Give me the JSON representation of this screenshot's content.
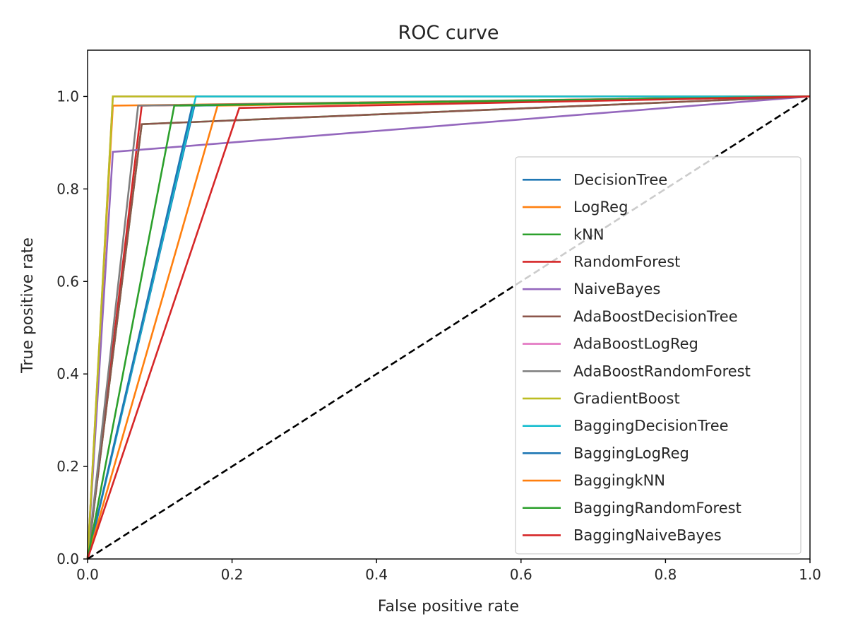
{
  "chart_data": {
    "type": "line",
    "title": "ROC curve",
    "xlabel": "False positive rate",
    "ylabel": "True positive rate",
    "xlim": [
      0,
      1
    ],
    "ylim": [
      0,
      1.1
    ],
    "xticks": [
      "0.0",
      "0.2",
      "0.4",
      "0.6",
      "0.8",
      "1.0"
    ],
    "yticks": [
      "0.0",
      "0.2",
      "0.4",
      "0.6",
      "0.8",
      "1.0"
    ],
    "grid": false,
    "legend_position": "center-right",
    "reference_line": {
      "x": [
        0,
        1
      ],
      "y": [
        0,
        1
      ],
      "color": "#000000",
      "style": "dashed"
    },
    "series": [
      {
        "name": "DecisionTree",
        "color": "#1f77b4",
        "x": [
          0,
          0.148,
          1
        ],
        "y": [
          0,
          0.98,
          1
        ]
      },
      {
        "name": "LogReg",
        "color": "#ff7f0e",
        "x": [
          0,
          0.035,
          1
        ],
        "y": [
          0,
          0.98,
          1
        ]
      },
      {
        "name": "kNN",
        "color": "#2ca02c",
        "x": [
          0,
          0.075,
          1
        ],
        "y": [
          0,
          0.94,
          1
        ]
      },
      {
        "name": "RandomForest",
        "color": "#d62728",
        "x": [
          0,
          0.075,
          1
        ],
        "y": [
          0,
          0.98,
          1
        ]
      },
      {
        "name": "NaiveBayes",
        "color": "#9467bd",
        "x": [
          0,
          0.035,
          1
        ],
        "y": [
          0,
          0.88,
          1
        ]
      },
      {
        "name": "AdaBoostDecisionTree",
        "color": "#8c564b",
        "x": [
          0,
          0.075,
          1
        ],
        "y": [
          0,
          0.94,
          1
        ]
      },
      {
        "name": "AdaBoostLogReg",
        "color": "#e377c2",
        "x": [
          0,
          0.035,
          1
        ],
        "y": [
          0,
          1.0,
          1
        ]
      },
      {
        "name": "AdaBoostRandomForest",
        "color": "#7f7f7f",
        "x": [
          0,
          0.07,
          1
        ],
        "y": [
          0,
          0.98,
          1
        ]
      },
      {
        "name": "GradientBoost",
        "color": "#bcbd22",
        "x": [
          0,
          0.035,
          1
        ],
        "y": [
          0,
          1.0,
          1
        ]
      },
      {
        "name": "BaggingDecisionTree",
        "color": "#17becf",
        "x": [
          0,
          0.15,
          1
        ],
        "y": [
          0,
          1.0,
          1
        ]
      },
      {
        "name": "BaggingLogReg",
        "color": "#1f77b4",
        "x": [
          0,
          0.145,
          1
        ],
        "y": [
          0,
          0.98,
          1
        ]
      },
      {
        "name": "BaggingkNN",
        "color": "#ff7f0e",
        "x": [
          0,
          0.18,
          1
        ],
        "y": [
          0,
          0.98,
          1
        ]
      },
      {
        "name": "BaggingRandomForest",
        "color": "#2ca02c",
        "x": [
          0,
          0.12,
          1
        ],
        "y": [
          0,
          0.98,
          1
        ]
      },
      {
        "name": "BaggingNaiveBayes",
        "color": "#d62728",
        "x": [
          0,
          0.21,
          1
        ],
        "y": [
          0,
          0.975,
          1
        ]
      }
    ]
  }
}
